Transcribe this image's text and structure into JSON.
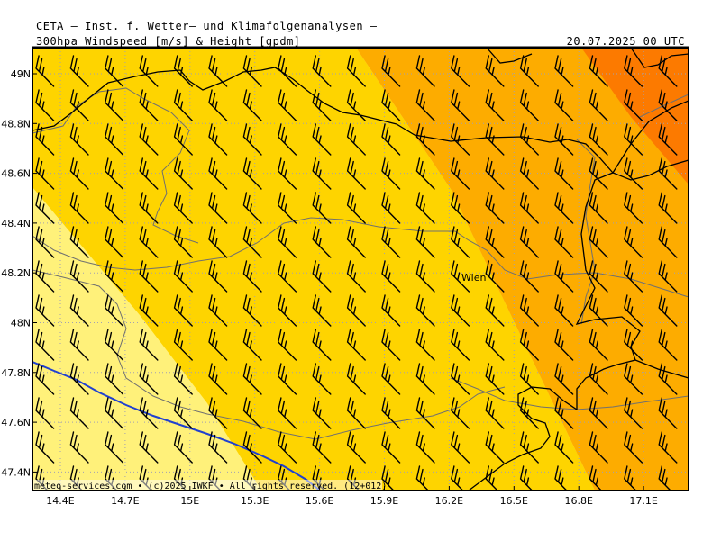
{
  "header": {
    "institute": "CETA – Inst. f. Wetter– und Klimafolgenanalysen –",
    "product": "300hpa Windspeed [m/s] & Height [gpdm]",
    "valid_time": "20.07.2025 00 UTC"
  },
  "map": {
    "lat_labels": [
      "49N",
      "48.8N",
      "48.6N",
      "48.4N",
      "48.2N",
      "48N",
      "47.8N",
      "47.6N",
      "47.4N"
    ],
    "lon_labels": [
      "14.4E",
      "14.7E",
      "15E",
      "15.3E",
      "15.6E",
      "15.9E",
      "16.2E",
      "16.5E",
      "16.8E",
      "17.1E"
    ],
    "city_label": "Wien",
    "credit": "meteo-services.com • (c)2025 IWKF • All rights reserved. (12+012)",
    "colors": {
      "band_1": "#fff17a",
      "band_2": "#fed400",
      "band_3": "#fdac00",
      "band_4": "#fc7a00",
      "height_contour": "#2040d0",
      "border": "#000000",
      "river": "#707070",
      "grid": "#a0a0b4"
    },
    "wind_barb_style": "two long barbs, one short barb, from northwest"
  }
}
